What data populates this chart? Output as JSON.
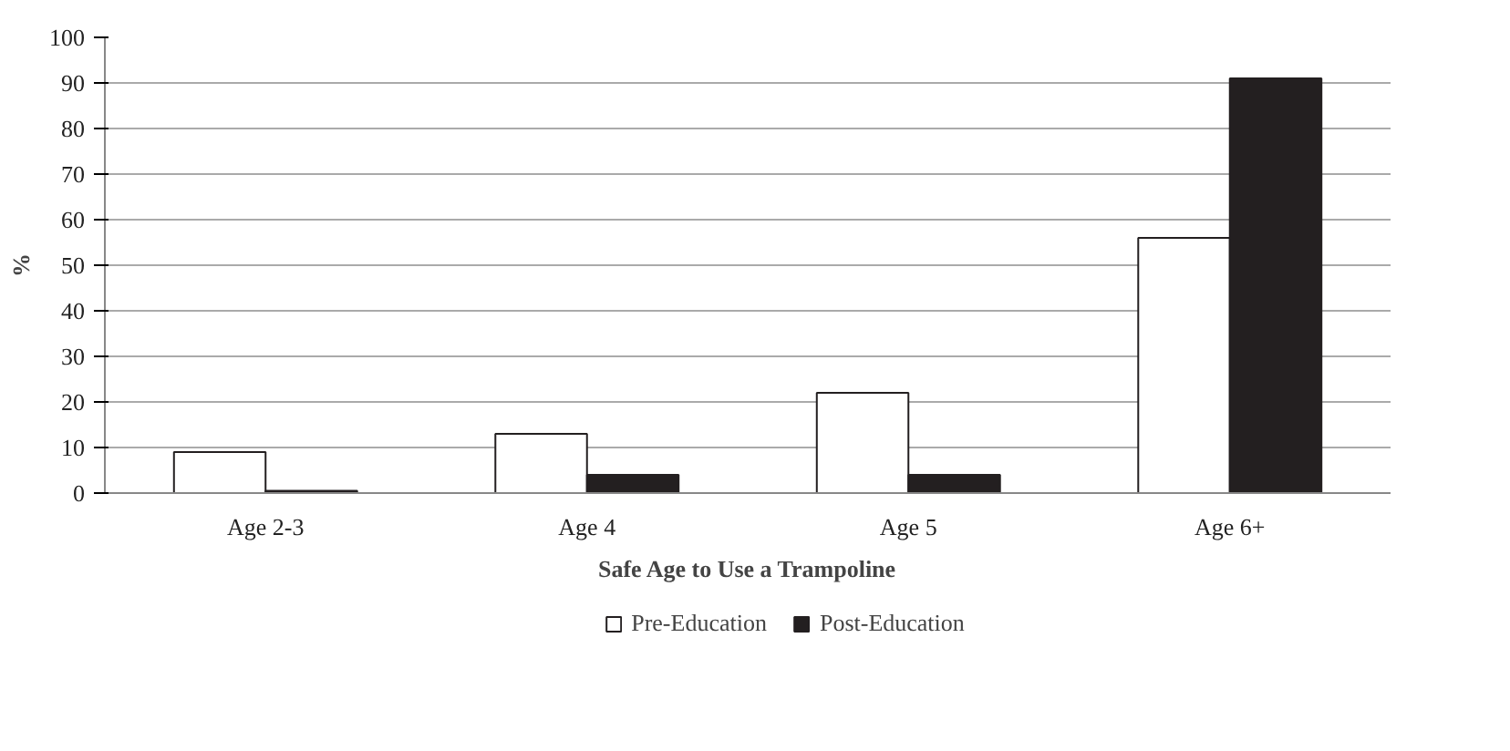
{
  "chart_data": {
    "type": "bar",
    "xlabel": "Safe Age to Use a Trampoline",
    "ylabel": "%",
    "categories": [
      "Age 2-3",
      "Age 4",
      "Age 5",
      "Age 6+"
    ],
    "series": [
      {
        "name": "Pre-Education",
        "color": "#ffffff",
        "values": [
          9,
          13,
          22,
          56
        ]
      },
      {
        "name": "Post-Education",
        "color": "#231f20",
        "values": [
          0.5,
          4,
          4,
          91
        ]
      }
    ],
    "ylim": [
      0,
      100
    ],
    "yticks": [
      0,
      10,
      20,
      30,
      40,
      50,
      60,
      70,
      80,
      90,
      100
    ],
    "grid": "y",
    "legend": "bottom"
  }
}
